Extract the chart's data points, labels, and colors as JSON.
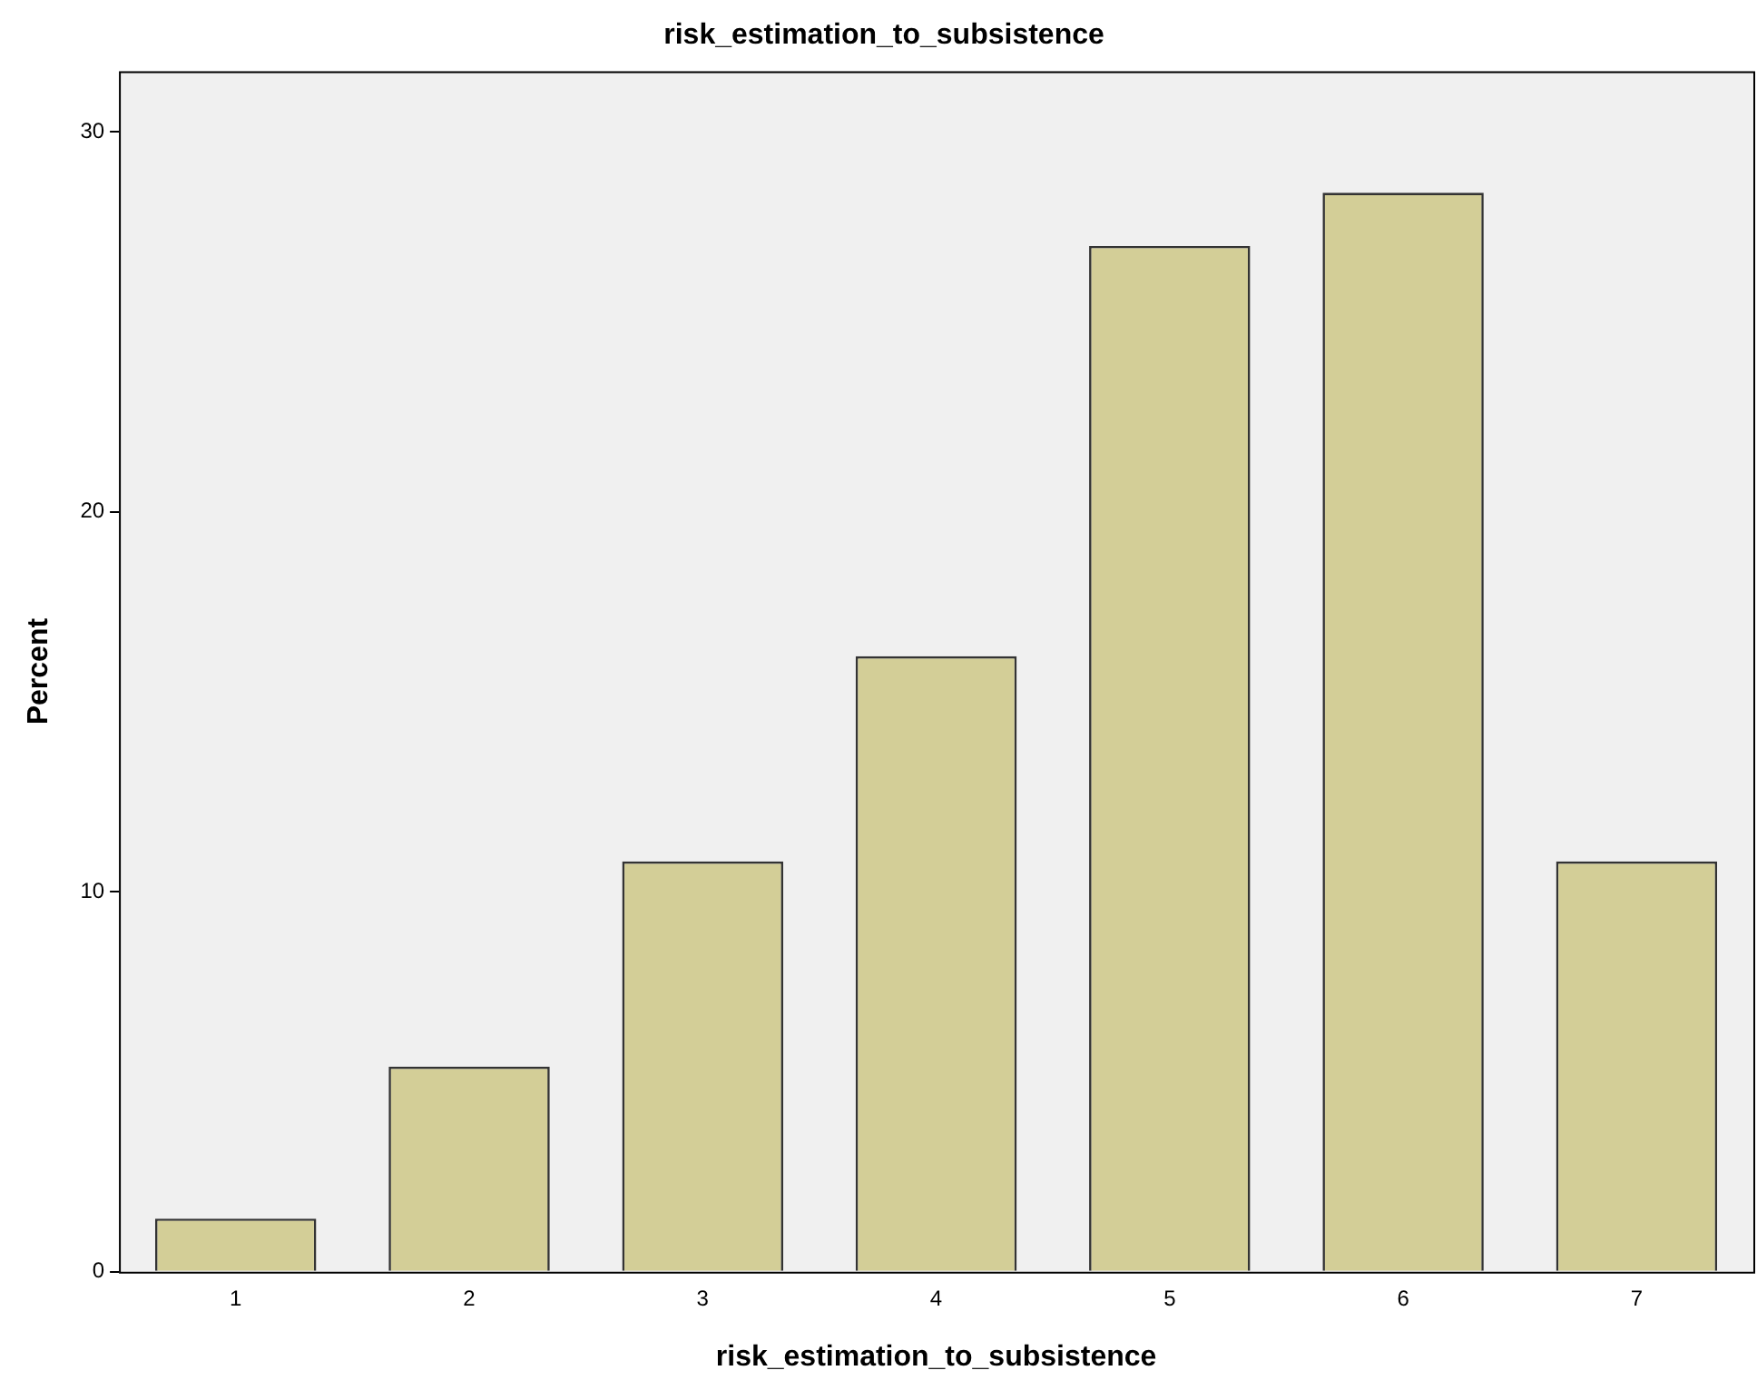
{
  "chart_data": {
    "type": "bar",
    "title": "risk_estimation_to_subsistence",
    "xlabel": "risk_estimation_to_subsistence",
    "ylabel": "Percent",
    "categories": [
      "1",
      "2",
      "3",
      "4",
      "5",
      "6",
      "7"
    ],
    "values": [
      1.4,
      5.4,
      10.8,
      16.2,
      27.0,
      28.4,
      10.8
    ],
    "color": "#d3ce97",
    "ylim": [
      0,
      31.6
    ],
    "yticks": [
      0,
      10,
      20,
      30
    ],
    "grid": false,
    "legend": false
  }
}
